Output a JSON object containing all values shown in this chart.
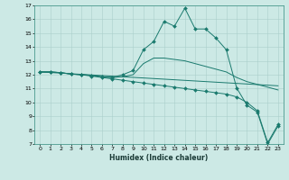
{
  "xlabel": "Humidex (Indice chaleur)",
  "ylabel": "",
  "xlim": [
    -0.5,
    23.5
  ],
  "ylim": [
    7,
    17
  ],
  "xticks": [
    0,
    1,
    2,
    3,
    4,
    5,
    6,
    7,
    8,
    9,
    10,
    11,
    12,
    13,
    14,
    15,
    16,
    17,
    18,
    19,
    20,
    21,
    22,
    23
  ],
  "yticks": [
    7,
    8,
    9,
    10,
    11,
    12,
    13,
    14,
    15,
    16,
    17
  ],
  "bg_color": "#cce9e5",
  "grid_color": "#aacfcb",
  "line_color": "#1a7a6e",
  "lines": [
    {
      "x": [
        0,
        1,
        2,
        3,
        4,
        5,
        6,
        7,
        8,
        9,
        10,
        11,
        12,
        13,
        14,
        15,
        16,
        17,
        18,
        19,
        20,
        21,
        22,
        23
      ],
      "y": [
        12.2,
        12.2,
        12.15,
        12.05,
        12.0,
        11.95,
        11.85,
        11.8,
        12.0,
        12.3,
        13.8,
        14.4,
        15.85,
        15.5,
        16.8,
        15.3,
        15.3,
        14.65,
        13.8,
        11.05,
        9.8,
        9.3,
        7.0,
        8.3
      ],
      "marker": "D",
      "markersize": 2.0
    },
    {
      "x": [
        0,
        1,
        2,
        3,
        4,
        5,
        6,
        7,
        8,
        9,
        10,
        11,
        12,
        13,
        14,
        15,
        16,
        17,
        18,
        19,
        20,
        21,
        22,
        23
      ],
      "y": [
        12.2,
        12.2,
        12.15,
        12.05,
        12.0,
        11.95,
        11.85,
        11.8,
        11.85,
        12.0,
        12.8,
        13.2,
        13.2,
        13.1,
        13.0,
        12.8,
        12.6,
        12.4,
        12.2,
        11.8,
        11.5,
        11.3,
        11.1,
        10.9
      ],
      "marker": null,
      "markersize": 0
    },
    {
      "x": [
        0,
        23
      ],
      "y": [
        12.2,
        11.2
      ],
      "marker": null,
      "markersize": 0
    },
    {
      "x": [
        0,
        1,
        2,
        3,
        4,
        5,
        6,
        7,
        8,
        9,
        10,
        11,
        12,
        13,
        14,
        15,
        16,
        17,
        18,
        19,
        20,
        21,
        22,
        23
      ],
      "y": [
        12.2,
        12.2,
        12.15,
        12.05,
        12.0,
        11.9,
        11.8,
        11.7,
        11.6,
        11.5,
        11.4,
        11.3,
        11.2,
        11.1,
        11.0,
        10.9,
        10.8,
        10.7,
        10.6,
        10.4,
        10.0,
        9.4,
        7.1,
        8.4
      ],
      "marker": "D",
      "markersize": 2.0
    }
  ]
}
